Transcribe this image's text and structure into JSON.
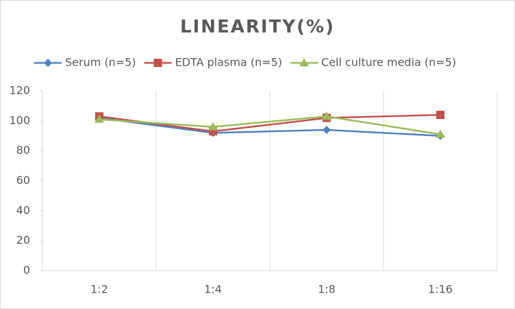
{
  "chart_data": {
    "type": "line",
    "title": "LINEARITY(%)",
    "categories": [
      "1:2",
      "1:4",
      "1:8",
      "1:16"
    ],
    "series": [
      {
        "name": "Serum (n=5)",
        "color": "#4f81bd",
        "marker": "diamond",
        "values": [
          102,
          92,
          94,
          90
        ]
      },
      {
        "name": "EDTA plasma (n=5)",
        "color": "#c0504d",
        "marker": "square",
        "values": [
          103,
          93,
          102,
          104
        ]
      },
      {
        "name": "Cell culture media (n=5)",
        "color": "#9bbb59",
        "marker": "triangle",
        "values": [
          101,
          96,
          103,
          91
        ]
      }
    ],
    "ylim": [
      0,
      120
    ],
    "yticks": [
      0,
      20,
      40,
      60,
      80,
      100,
      120
    ],
    "grid": "vertical",
    "legend": "top"
  }
}
